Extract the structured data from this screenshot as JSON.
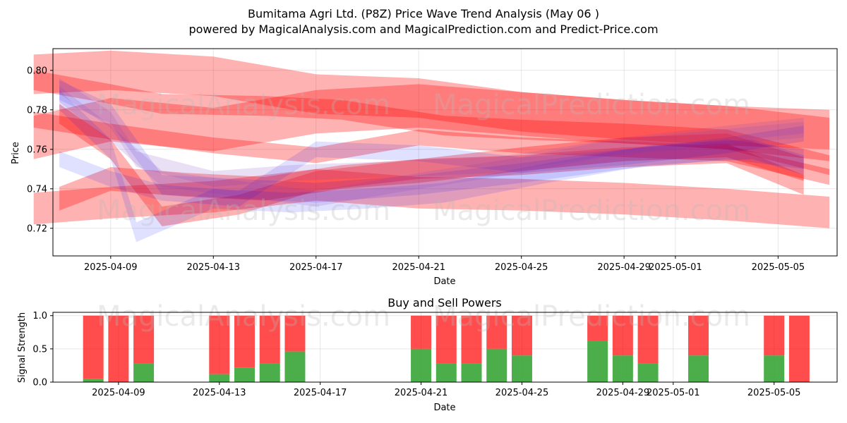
{
  "title_line1": "Bumitama Agri Ltd. (P8Z) Price Wave Trend Analysis (May 06 )",
  "title_line2": "powered by MagicalAnalysis.com and MagicalPrediction.com and Predict-Price.com",
  "watermarks": [
    "MagicalAnalysis.com",
    "MagicalPrediction.com"
  ],
  "colors": {
    "red": "#ff0000",
    "blue": "#0000ff",
    "purple": "#7f3fbf",
    "buy": "#2ca02c",
    "sell": "#ff0000"
  },
  "chart_data": [
    {
      "type": "area",
      "title": "",
      "xlabel": "Date",
      "ylabel": "Price",
      "x_ticks": [
        "2025-04-09",
        "2025-04-13",
        "2025-04-17",
        "2025-04-21",
        "2025-04-25",
        "2025-04-29",
        "2025-05-01",
        "2025-05-05"
      ],
      "y_ticks": [
        "0.72",
        "0.74",
        "0.76",
        "0.78",
        "0.80"
      ],
      "xlim": [
        "2025-04-06",
        "2025-05-07"
      ],
      "ylim": [
        0.706,
        0.811
      ],
      "grid": true,
      "bands": [
        {
          "color": "red",
          "width": 0.02,
          "x": [
            "2025-04-06",
            "2025-04-09",
            "2025-04-13",
            "2025-04-17",
            "2025-04-21",
            "2025-04-25",
            "2025-04-29",
            "2025-05-03",
            "2025-05-07"
          ],
          "y": [
            0.798,
            0.8,
            0.797,
            0.788,
            0.786,
            0.779,
            0.775,
            0.772,
            0.77
          ]
        },
        {
          "color": "red",
          "width": 0.022,
          "x": [
            "2025-04-06",
            "2025-04-09",
            "2025-04-13",
            "2025-04-17",
            "2025-04-21",
            "2025-04-25",
            "2025-04-29",
            "2025-05-03",
            "2025-05-07"
          ],
          "y": [
            0.766,
            0.775,
            0.77,
            0.779,
            0.782,
            0.778,
            0.774,
            0.771,
            0.765
          ]
        },
        {
          "color": "red",
          "width": 0.01,
          "x": [
            "2025-04-06",
            "2025-04-09",
            "2025-04-11",
            "2025-04-15",
            "2025-04-18",
            "2025-04-22",
            "2025-04-25",
            "2025-04-29",
            "2025-05-03",
            "2025-05-07"
          ],
          "y": [
            0.795,
            0.788,
            0.783,
            0.782,
            0.78,
            0.772,
            0.77,
            0.768,
            0.765,
            0.752
          ]
        },
        {
          "color": "red",
          "width": 0.008,
          "x": [
            "2025-04-06",
            "2025-04-09",
            "2025-04-13",
            "2025-04-17",
            "2025-04-21",
            "2025-04-25",
            "2025-04-29",
            "2025-05-03",
            "2025-05-07"
          ],
          "y": [
            0.775,
            0.769,
            0.762,
            0.757,
            0.766,
            0.762,
            0.76,
            0.758,
            0.746
          ]
        },
        {
          "color": "red",
          "width": 0.016,
          "x": [
            "2025-04-06",
            "2025-04-09",
            "2025-04-13",
            "2025-04-17",
            "2025-04-21",
            "2025-04-25",
            "2025-04-29",
            "2025-05-03",
            "2025-05-07"
          ],
          "y": [
            0.73,
            0.733,
            0.736,
            0.742,
            0.738,
            0.737,
            0.735,
            0.732,
            0.728
          ]
        },
        {
          "color": "red",
          "width": 0.01,
          "x": [
            "2025-04-07",
            "2025-04-09",
            "2025-04-11",
            "2025-04-14",
            "2025-04-17",
            "2025-04-21",
            "2025-04-25",
            "2025-04-29",
            "2025-05-03",
            "2025-05-06"
          ],
          "y": [
            0.778,
            0.76,
            0.726,
            0.732,
            0.744,
            0.75,
            0.752,
            0.756,
            0.758,
            0.742
          ]
        },
        {
          "color": "red",
          "width": 0.012,
          "x": [
            "2025-04-07",
            "2025-04-09",
            "2025-04-12",
            "2025-04-15",
            "2025-04-18",
            "2025-04-21",
            "2025-04-25",
            "2025-04-29",
            "2025-05-03",
            "2025-05-06"
          ],
          "y": [
            0.735,
            0.745,
            0.742,
            0.74,
            0.746,
            0.749,
            0.755,
            0.76,
            0.762,
            0.75
          ]
        },
        {
          "color": "blue",
          "width": 0.01,
          "x": [
            "2025-04-07",
            "2025-04-09",
            "2025-04-10",
            "2025-04-13",
            "2025-04-16",
            "2025-04-19",
            "2025-04-22",
            "2025-04-26",
            "2025-04-30",
            "2025-05-04",
            "2025-05-06"
          ],
          "y": [
            0.785,
            0.76,
            0.718,
            0.735,
            0.733,
            0.735,
            0.738,
            0.748,
            0.757,
            0.76,
            0.752
          ]
        },
        {
          "color": "blue",
          "width": 0.01,
          "x": [
            "2025-04-07",
            "2025-04-09",
            "2025-04-11",
            "2025-04-14",
            "2025-04-17",
            "2025-04-21",
            "2025-04-25",
            "2025-04-29",
            "2025-05-03",
            "2025-05-06"
          ],
          "y": [
            0.79,
            0.778,
            0.742,
            0.74,
            0.738,
            0.742,
            0.748,
            0.755,
            0.76,
            0.755
          ]
        },
        {
          "color": "blue",
          "width": 0.008,
          "x": [
            "2025-04-07",
            "2025-04-09",
            "2025-04-11",
            "2025-04-14",
            "2025-04-17",
            "2025-04-21",
            "2025-04-25",
            "2025-04-29",
            "2025-05-03",
            "2025-05-06"
          ],
          "y": [
            0.755,
            0.745,
            0.738,
            0.735,
            0.76,
            0.758,
            0.752,
            0.756,
            0.762,
            0.768
          ]
        },
        {
          "color": "purple",
          "width": 0.008,
          "x": [
            "2025-04-07",
            "2025-04-09",
            "2025-04-10",
            "2025-04-13",
            "2025-04-16",
            "2025-04-20",
            "2025-04-24",
            "2025-04-28",
            "2025-05-02",
            "2025-05-06"
          ],
          "y": [
            0.792,
            0.775,
            0.755,
            0.745,
            0.748,
            0.75,
            0.752,
            0.76,
            0.765,
            0.77
          ]
        },
        {
          "color": "purple",
          "width": 0.008,
          "x": [
            "2025-04-07",
            "2025-04-09",
            "2025-04-11",
            "2025-04-14",
            "2025-04-17",
            "2025-04-21",
            "2025-04-25",
            "2025-04-29",
            "2025-05-03",
            "2025-05-06"
          ],
          "y": [
            0.788,
            0.768,
            0.745,
            0.74,
            0.735,
            0.744,
            0.752,
            0.762,
            0.768,
            0.772
          ]
        }
      ]
    },
    {
      "type": "bar",
      "title": "Buy and Sell Powers",
      "xlabel": "Date",
      "ylabel": "Signal Strength",
      "x_ticks": [
        "2025-04-09",
        "2025-04-13",
        "2025-04-17",
        "2025-04-21",
        "2025-04-25",
        "2025-04-29",
        "2025-05-01",
        "2025-05-05"
      ],
      "y_ticks": [
        "0.0",
        "0.5",
        "1.0"
      ],
      "xlim": [
        "2025-04-06",
        "2025-05-07"
      ],
      "ylim": [
        0,
        1.05
      ],
      "grid": true,
      "dates": [
        "2025-04-08",
        "2025-04-09",
        "2025-04-10",
        "2025-04-13",
        "2025-04-14",
        "2025-04-15",
        "2025-04-16",
        "2025-04-21",
        "2025-04-22",
        "2025-04-23",
        "2025-04-24",
        "2025-04-25",
        "2025-04-28",
        "2025-04-29",
        "2025-04-30",
        "2025-05-02",
        "2025-05-05",
        "2025-05-06"
      ],
      "buy": [
        0.05,
        0.0,
        0.28,
        0.12,
        0.22,
        0.28,
        0.46,
        0.5,
        0.28,
        0.28,
        0.5,
        0.4,
        0.62,
        0.4,
        0.28,
        0.4,
        0.4,
        0.0
      ],
      "total": [
        1,
        1,
        1,
        1,
        1,
        1,
        1,
        1,
        1,
        1,
        1,
        1,
        1,
        1,
        1,
        1,
        1,
        1
      ]
    }
  ]
}
